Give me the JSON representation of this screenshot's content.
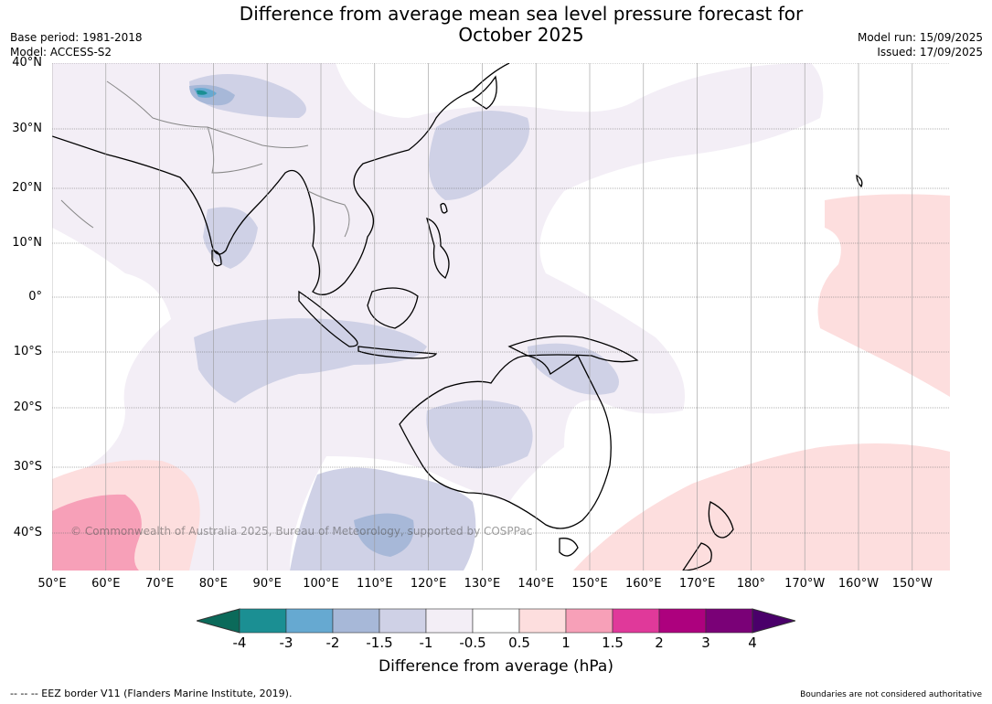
{
  "title": {
    "line1": "Difference from average mean sea level pressure forecast for",
    "line2": "October 2025"
  },
  "meta": {
    "base_period": "Base period: 1981-2018",
    "model": "Model: ACCESS-S2",
    "model_run": "Model run: 15/09/2025",
    "issued": "Issued: 17/09/2025"
  },
  "map": {
    "lat_labels": [
      "40°N",
      "30°N",
      "20°N",
      "10°N",
      "0°",
      "10°S",
      "20°S",
      "30°S",
      "40°S"
    ],
    "lon_labels": [
      "50°E",
      "60°E",
      "70°E",
      "80°E",
      "90°E",
      "100°E",
      "110°E",
      "120°E",
      "130°E",
      "140°E",
      "150°E",
      "160°E",
      "170°E",
      "180°",
      "170°W",
      "160°W",
      "150°W"
    ],
    "copyright": "© Commonwealth of Australia 2025, Bureau of Meteorology, supported by COSPPac",
    "colors": {
      "land_outline": "#000000",
      "border": "#888888",
      "gridline": "#444444"
    }
  },
  "colorbar": {
    "ticks": [
      "-4",
      "-3",
      "-2",
      "-1.5",
      "-1",
      "-0.5",
      "0.5",
      "1",
      "1.5",
      "2",
      "3",
      "4"
    ],
    "colors": [
      "#1b8f93",
      "#66a9d1",
      "#a7b8d8",
      "#cfd1e6",
      "#f3eef6",
      "#ffffff",
      "#fddede",
      "#f7a0b8",
      "#e0399a",
      "#ad017e",
      "#7a0177"
    ],
    "under_color": "#0b6a5a",
    "over_color": "#4a006a",
    "label": "Difference from average (hPa)"
  },
  "footer": {
    "eez": "-- -- -- EEZ border V11 (Flanders Marine Institute, 2019).",
    "boundaries": "Boundaries are not considered authoritative"
  }
}
